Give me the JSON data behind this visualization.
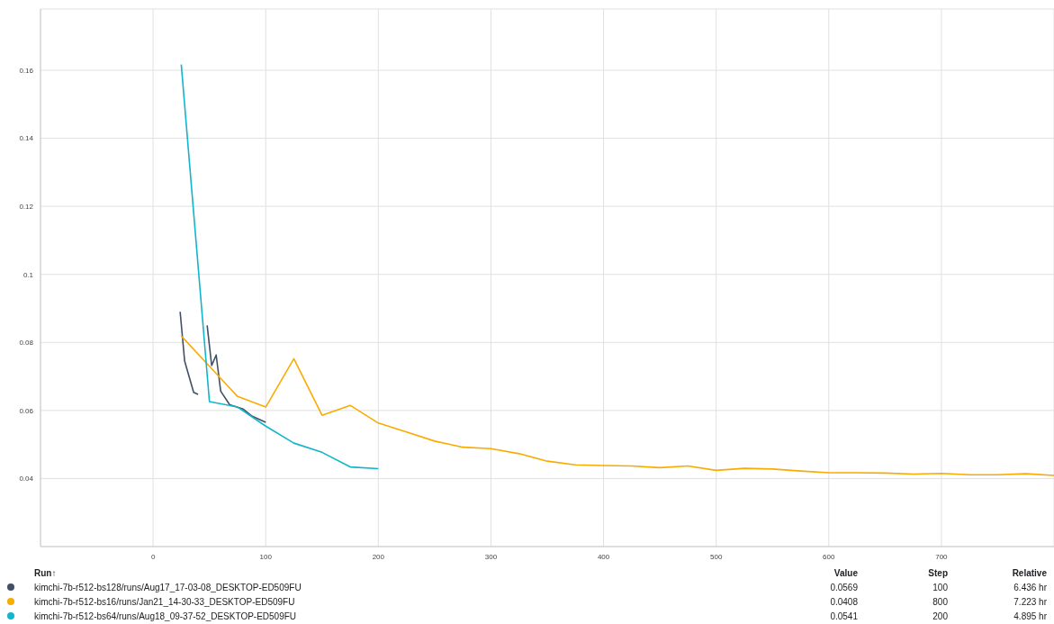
{
  "chart_data": {
    "type": "line",
    "legend": "bottom",
    "grid": true,
    "xlim": [
      -100,
      800
    ],
    "xticks": [
      0,
      100,
      200,
      300,
      400,
      500,
      600,
      700
    ],
    "ylim": [
      0.02,
      0.178
    ],
    "yticks": [
      0.04,
      0.06,
      0.08,
      0.1,
      0.12,
      0.14,
      0.16
    ],
    "annotations": [
      "Run↑",
      "Value",
      "Step",
      "Relative",
      "0.0569",
      "100",
      "6.436 hr",
      "0.0408",
      "800",
      "7.223 hr",
      "0.0541",
      "200",
      "4.895 hr"
    ],
    "series": [
      {
        "name": "kimchi-7b-r512-bs128/runs/Aug17_17-03-08_DESKTOP-ED509FU",
        "color": "#425066",
        "x": [
          24,
          28,
          36,
          40,
          43,
          46,
          48,
          52,
          56,
          60,
          68,
          80,
          88,
          100
        ],
        "values": [
          0.089,
          0.0745,
          0.0653,
          0.0647,
          null,
          null,
          0.085,
          0.0732,
          0.0763,
          0.0657,
          0.0617,
          0.0604,
          0.0583,
          0.0565
        ]
      },
      {
        "name": "kimchi-7b-r512-bs16/runs/Jan21_14-30-33_DESKTOP-ED509FU",
        "color": "#f9ab00",
        "x": [
          25,
          50,
          75,
          100,
          125,
          150,
          175,
          200,
          225,
          250,
          275,
          300,
          325,
          350,
          375,
          400,
          425,
          450,
          475,
          500,
          525,
          550,
          575,
          600,
          625,
          650,
          675,
          700,
          725,
          750,
          775,
          800
        ],
        "values": [
          0.0819,
          0.073,
          0.0641,
          0.061,
          0.0752,
          0.0586,
          0.0615,
          0.0563,
          0.0537,
          0.051,
          0.0492,
          0.0488,
          0.0473,
          0.0451,
          0.044,
          0.0438,
          0.0437,
          0.0432,
          0.0437,
          0.0424,
          0.043,
          0.0428,
          0.0422,
          0.0417,
          0.0417,
          0.0416,
          0.0413,
          0.0415,
          0.0411,
          0.0411,
          0.0414,
          0.0409
        ]
      },
      {
        "name": "kimchi-7b-r512-bs64/runs/Aug18_09-37-52_DESKTOP-ED509FU",
        "color": "#12b5cb",
        "x": [
          25,
          50,
          75,
          100,
          125,
          150,
          175,
          200
        ],
        "values": [
          0.1617,
          0.0626,
          0.061,
          0.0554,
          0.0504,
          0.0477,
          0.0434,
          0.0429
        ]
      }
    ]
  }
}
